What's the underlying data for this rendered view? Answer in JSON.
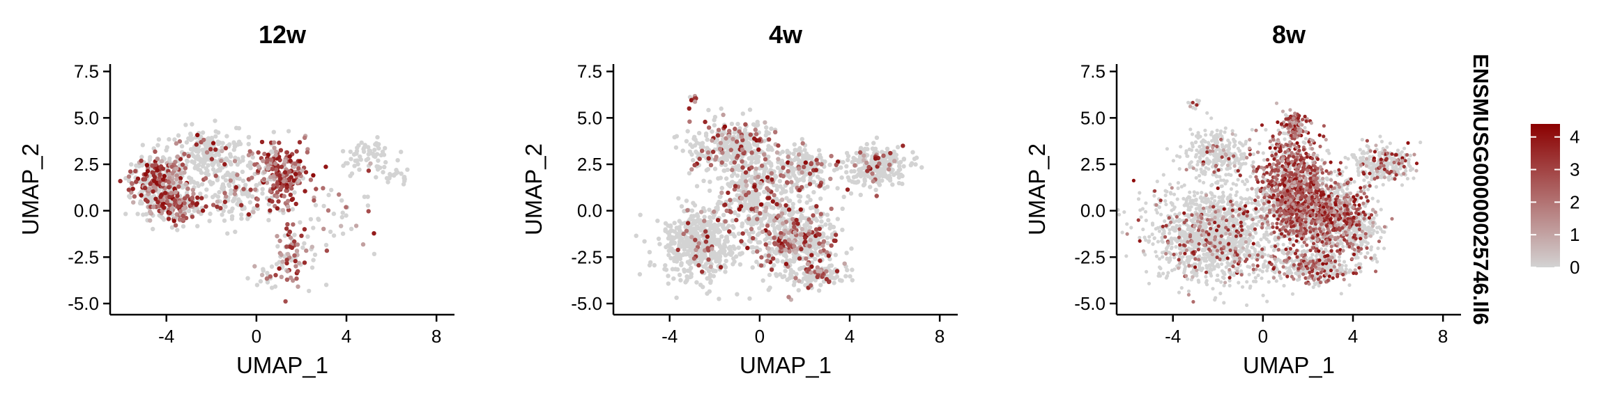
{
  "chart_data": {
    "type": "scatter",
    "feature": "ENSMUSG00000025746.Il6",
    "xlabel": "UMAP_1",
    "ylabel": "UMAP_2",
    "xlim": [
      -6.5,
      8.8
    ],
    "ylim": [
      -5.6,
      7.9
    ],
    "xticks": [
      -4,
      0,
      4,
      8
    ],
    "yticks": [
      7.5,
      5.0,
      2.5,
      0.0,
      -2.5,
      -5.0
    ],
    "xtick_labels": [
      "-4",
      "0",
      "4",
      "8"
    ],
    "ytick_labels": [
      "7.5",
      "5.0",
      "2.5",
      "0.0",
      "-2.5",
      "-5.0"
    ],
    "grid": false,
    "color_scale": {
      "low_color": "#d3d3d3",
      "high_color": "#8b0000",
      "min": 0,
      "max": 4.4,
      "ticks": [
        0,
        1,
        2,
        3,
        4
      ],
      "tick_labels": [
        "0",
        "1",
        "2",
        "3",
        "4"
      ]
    },
    "legend_placement": "right",
    "panels": [
      {
        "title": "12w",
        "groups": [
          {
            "shape": "ellipse",
            "cx": -4.3,
            "cy": 1.5,
            "rx": 1.3,
            "ry": 1.6,
            "n": 360,
            "expr_frac": 0.45
          },
          {
            "shape": "ellipse",
            "cx": -3.5,
            "cy": 0.3,
            "rx": 1.2,
            "ry": 0.9,
            "n": 180,
            "expr_frac": 0.5
          },
          {
            "shape": "ellipse",
            "cx": -2.0,
            "cy": 3.0,
            "rx": 1.6,
            "ry": 1.5,
            "n": 220,
            "expr_frac": 0.12
          },
          {
            "shape": "ellipse",
            "cx": -1.0,
            "cy": 1.0,
            "rx": 1.5,
            "ry": 1.6,
            "n": 130,
            "expr_frac": 0.2
          },
          {
            "shape": "ellipse",
            "cx": 1.0,
            "cy": 2.0,
            "rx": 1.3,
            "ry": 1.7,
            "n": 230,
            "expr_frac": 0.8
          },
          {
            "shape": "ellipse",
            "cx": 1.6,
            "cy": -2.3,
            "rx": 0.7,
            "ry": 1.7,
            "n": 70,
            "expr_frac": 0.6
          },
          {
            "shape": "ellipse",
            "cx": 0.6,
            "cy": -3.5,
            "rx": 0.8,
            "ry": 0.7,
            "n": 25,
            "expr_frac": 0.3
          },
          {
            "shape": "ellipse",
            "cx": 5.0,
            "cy": 3.0,
            "rx": 1.2,
            "ry": 0.8,
            "n": 60,
            "expr_frac": 0.05
          },
          {
            "shape": "ellipse",
            "cx": 6.3,
            "cy": 1.9,
            "rx": 0.7,
            "ry": 0.4,
            "n": 18,
            "expr_frac": 0.0
          },
          {
            "shape": "ellipse",
            "cx": 3.5,
            "cy": -0.5,
            "rx": 2.0,
            "ry": 2.5,
            "n": 45,
            "expr_frac": 0.2
          }
        ]
      },
      {
        "title": "4w",
        "groups": [
          {
            "shape": "ellipse",
            "cx": -1.2,
            "cy": 3.5,
            "rx": 1.9,
            "ry": 1.4,
            "n": 360,
            "expr_frac": 0.25
          },
          {
            "shape": "ellipse",
            "cx": -2.6,
            "cy": -1.8,
            "rx": 1.8,
            "ry": 1.9,
            "n": 520,
            "expr_frac": 0.07
          },
          {
            "shape": "ellipse",
            "cx": -0.5,
            "cy": 0.8,
            "rx": 1.5,
            "ry": 1.7,
            "n": 260,
            "expr_frac": 0.22
          },
          {
            "shape": "ellipse",
            "cx": 1.6,
            "cy": -1.5,
            "rx": 1.7,
            "ry": 2.0,
            "n": 500,
            "expr_frac": 0.28
          },
          {
            "shape": "ellipse",
            "cx": 1.8,
            "cy": 2.2,
            "rx": 1.6,
            "ry": 1.4,
            "n": 200,
            "expr_frac": 0.18
          },
          {
            "shape": "ellipse",
            "cx": 5.3,
            "cy": 2.4,
            "rx": 1.4,
            "ry": 1.0,
            "n": 260,
            "expr_frac": 0.08
          },
          {
            "shape": "ellipse",
            "cx": 2.6,
            "cy": -3.5,
            "rx": 1.2,
            "ry": 0.6,
            "n": 100,
            "expr_frac": 0.2
          },
          {
            "shape": "ellipse",
            "cx": -2.9,
            "cy": 6.0,
            "rx": 0.2,
            "ry": 0.15,
            "n": 8,
            "expr_frac": 0.5
          }
        ]
      },
      {
        "title": "8w",
        "groups": [
          {
            "shape": "ellipse",
            "cx": -2.0,
            "cy": -1.3,
            "rx": 2.9,
            "ry": 2.5,
            "n": 1500,
            "expr_frac": 0.12
          },
          {
            "shape": "ellipse",
            "cx": -2.0,
            "cy": 3.0,
            "rx": 1.5,
            "ry": 1.4,
            "n": 300,
            "expr_frac": 0.08
          },
          {
            "shape": "ellipse",
            "cx": 1.3,
            "cy": 1.6,
            "rx": 1.4,
            "ry": 2.6,
            "n": 900,
            "expr_frac": 0.7
          },
          {
            "shape": "ellipse",
            "cx": 2.6,
            "cy": -0.2,
            "rx": 2.0,
            "ry": 2.0,
            "n": 1000,
            "expr_frac": 0.55
          },
          {
            "shape": "ellipse",
            "cx": 2.3,
            "cy": -3.0,
            "rx": 1.8,
            "ry": 0.8,
            "n": 350,
            "expr_frac": 0.3
          },
          {
            "shape": "ellipse",
            "cx": 5.3,
            "cy": 2.5,
            "rx": 1.4,
            "ry": 1.0,
            "n": 300,
            "expr_frac": 0.22
          },
          {
            "shape": "ellipse",
            "cx": 4.2,
            "cy": -1.0,
            "rx": 1.0,
            "ry": 1.5,
            "n": 200,
            "expr_frac": 0.1
          },
          {
            "shape": "ellipse",
            "cx": 1.4,
            "cy": 4.6,
            "rx": 0.5,
            "ry": 0.6,
            "n": 120,
            "expr_frac": 0.85
          },
          {
            "shape": "ellipse",
            "cx": -3.0,
            "cy": 5.8,
            "rx": 0.3,
            "ry": 0.3,
            "n": 12,
            "expr_frac": 0.3
          }
        ]
      }
    ]
  }
}
